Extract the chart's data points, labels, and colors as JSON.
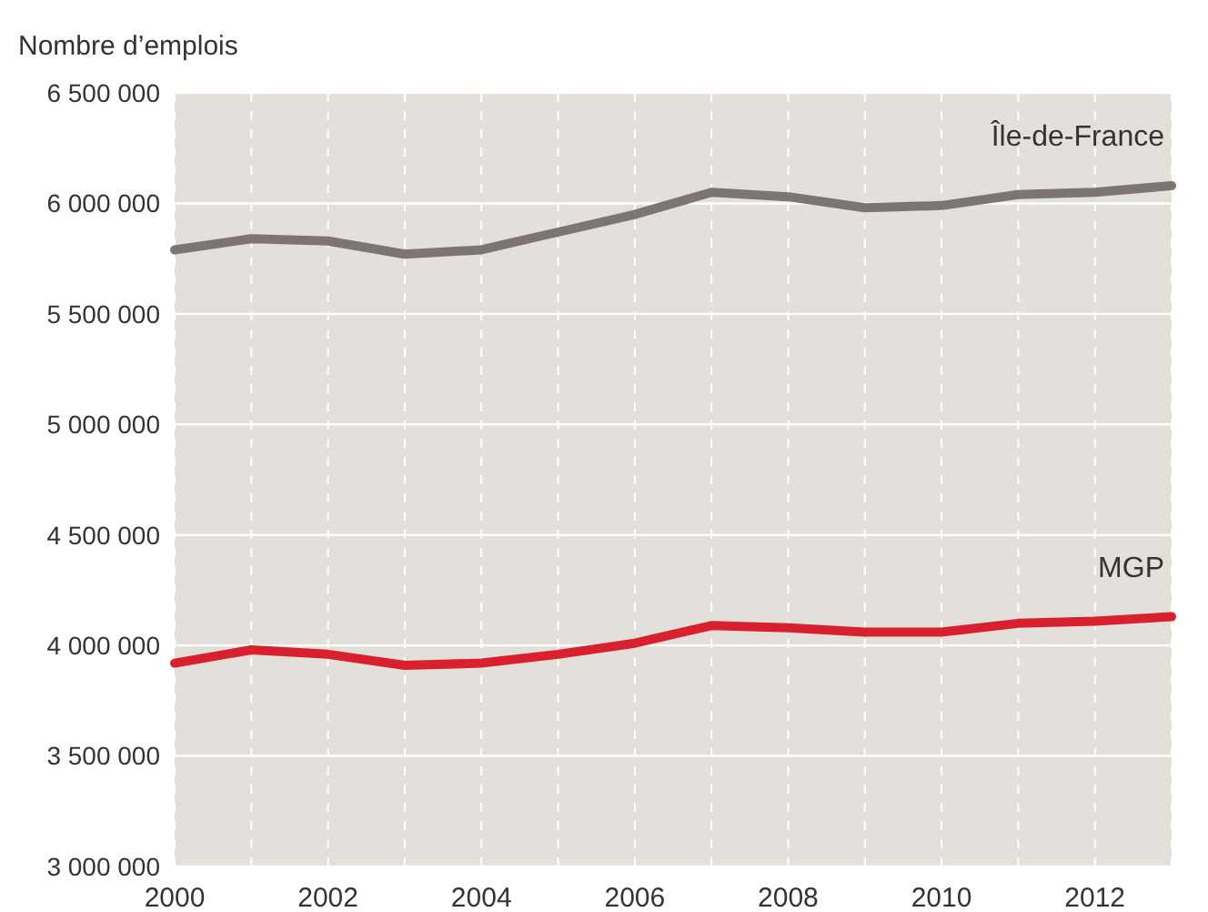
{
  "chart_data": {
    "type": "line",
    "ylabel": "Nombre d’emplois",
    "x": [
      2000,
      2001,
      2002,
      2003,
      2004,
      2005,
      2006,
      2007,
      2008,
      2009,
      2010,
      2011,
      2012,
      2013
    ],
    "series": [
      {
        "name": "Île-de-France",
        "color": "#7d7573",
        "values": [
          5790000,
          5840000,
          5830000,
          5770000,
          5790000,
          5870000,
          5950000,
          6050000,
          6030000,
          5980000,
          5990000,
          6040000,
          6050000,
          6080000
        ]
      },
      {
        "name": "MGP",
        "color": "#d9202e",
        "values": [
          3920000,
          3980000,
          3960000,
          3910000,
          3920000,
          3960000,
          4010000,
          4090000,
          4080000,
          4060000,
          4060000,
          4100000,
          4110000,
          4130000
        ]
      }
    ],
    "xlim": [
      2000,
      2013
    ],
    "xticks": [
      2000,
      {
        "value": 2001,
        "label": null
      },
      2002,
      {
        "value": 2003,
        "label": null
      },
      2004,
      {
        "value": 2005,
        "label": null
      },
      2006,
      {
        "value": 2007,
        "label": null
      },
      2008,
      {
        "value": 2009,
        "label": null
      },
      2010,
      {
        "value": 2011,
        "label": null
      },
      2012,
      {
        "value": 2013,
        "label": null
      }
    ],
    "ylim": [
      3000000,
      6500000
    ],
    "yticks": [
      {
        "value": 3000000,
        "label": "3 000 000"
      },
      {
        "value": 3500000,
        "label": "3 500 000"
      },
      {
        "value": 4000000,
        "label": "4 000 000"
      },
      {
        "value": 4500000,
        "label": "4 500 000"
      },
      {
        "value": 5000000,
        "label": "5 000 000"
      },
      {
        "value": 5500000,
        "label": "5 500 000"
      },
      {
        "value": 6000000,
        "label": "6 000 000"
      },
      {
        "value": 6500000,
        "label": "6 500 000"
      }
    ],
    "grid": true,
    "legend": false,
    "marker": "none",
    "line_style": "solid"
  }
}
